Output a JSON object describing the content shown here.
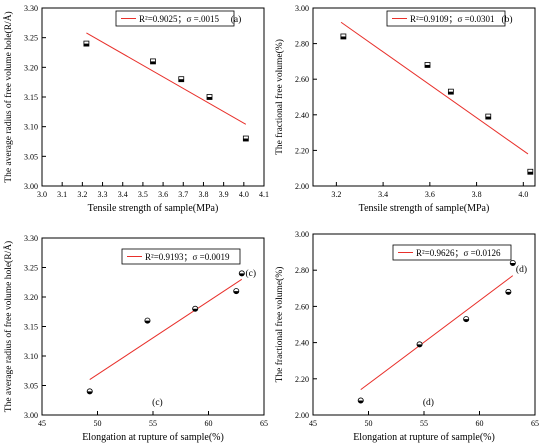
{
  "chart_data": [
    {
      "type": "scatter",
      "panel_label": "(a)",
      "xlabel": "Tensile strength of sample(MPa)",
      "ylabel": "The average radius of free volume hole(R/Å)",
      "xlim": [
        3.0,
        4.1
      ],
      "ylim": [
        3.0,
        3.3
      ],
      "xticks": [
        3.0,
        3.1,
        3.2,
        3.3,
        3.4,
        3.5,
        3.6,
        3.7,
        3.8,
        3.9,
        4.0,
        4.1
      ],
      "yticks": [
        3.0,
        3.05,
        3.1,
        3.15,
        3.2,
        3.25,
        3.3
      ],
      "xtick_decimals": 1,
      "ytick_decimals": 2,
      "points": [
        [
          3.22,
          3.24
        ],
        [
          3.55,
          3.21
        ],
        [
          3.69,
          3.18
        ],
        [
          3.83,
          3.15
        ],
        [
          4.01,
          3.08
        ]
      ],
      "fit_line": [
        [
          3.22,
          3.258
        ],
        [
          4.01,
          3.104
        ]
      ],
      "legend": "R²=0.9025；σ =.0015",
      "legend_position": "top-center",
      "marker": "half-filled-square",
      "line_color": "#e8302b"
    },
    {
      "type": "scatter",
      "panel_label": "(b)",
      "xlabel": "Tensile strength of sample(MPa)",
      "ylabel": "The fractional free volume(%)",
      "xlim": [
        3.1,
        4.05
      ],
      "ylim": [
        2.0,
        3.0
      ],
      "xticks": [
        3.2,
        3.4,
        3.6,
        3.8,
        4.0
      ],
      "yticks": [
        2.0,
        2.2,
        2.4,
        2.6,
        2.8,
        3.0
      ],
      "xtick_decimals": 1,
      "ytick_decimals": 2,
      "points": [
        [
          3.23,
          2.84
        ],
        [
          3.59,
          2.68
        ],
        [
          3.69,
          2.53
        ],
        [
          3.85,
          2.39
        ],
        [
          4.03,
          2.08
        ]
      ],
      "fit_line": [
        [
          3.22,
          2.92
        ],
        [
          4.02,
          2.18
        ]
      ],
      "legend": "R²=0.9109；σ =0.0301",
      "legend_position": "top-center",
      "marker": "half-filled-square",
      "line_color": "#e8302b"
    },
    {
      "type": "scatter",
      "panel_label_top": "(c)",
      "panel_label": "(c)",
      "xlabel": "Elongation at rupture of sample(%)",
      "ylabel": "The average radius of free volume hole(R/Å)",
      "xlim": [
        45,
        65
      ],
      "ylim": [
        3.0,
        3.3
      ],
      "xticks": [
        45,
        50,
        55,
        60,
        65
      ],
      "yticks": [
        3.0,
        3.05,
        3.1,
        3.15,
        3.2,
        3.25,
        3.3
      ],
      "xtick_decimals": 0,
      "ytick_decimals": 2,
      "points": [
        [
          49.3,
          3.04
        ],
        [
          54.5,
          3.16
        ],
        [
          58.8,
          3.18
        ],
        [
          62.5,
          3.21
        ],
        [
          63.0,
          3.24
        ]
      ],
      "fit_line": [
        [
          49.3,
          3.06
        ],
        [
          63.0,
          3.23
        ]
      ],
      "legend": "R²=0.9193；σ =0.0019",
      "legend_position": "top-right",
      "marker": "half-filled-circle",
      "line_color": "#e8302b"
    },
    {
      "type": "scatter",
      "panel_label_top": "(d)",
      "panel_label": "(d)",
      "xlabel": "Elongation at rupture of sample(%)",
      "ylabel": "The fractional free volume(%)",
      "xlim": [
        45,
        65
      ],
      "ylim": [
        2.0,
        3.0
      ],
      "xticks": [
        45,
        50,
        55,
        60,
        65
      ],
      "yticks": [
        2.0,
        2.2,
        2.4,
        2.6,
        2.8,
        3.0
      ],
      "xtick_decimals": 0,
      "ytick_decimals": 2,
      "points": [
        [
          49.3,
          2.08
        ],
        [
          54.6,
          2.39
        ],
        [
          58.8,
          2.53
        ],
        [
          62.6,
          2.68
        ],
        [
          63.0,
          2.84
        ]
      ],
      "fit_line": [
        [
          49.3,
          2.14
        ],
        [
          63.0,
          2.77
        ]
      ],
      "legend": "R²=0.9626；σ =0.0126",
      "legend_position": "top-right",
      "marker": "half-filled-circle",
      "line_color": "#e8302b"
    }
  ]
}
